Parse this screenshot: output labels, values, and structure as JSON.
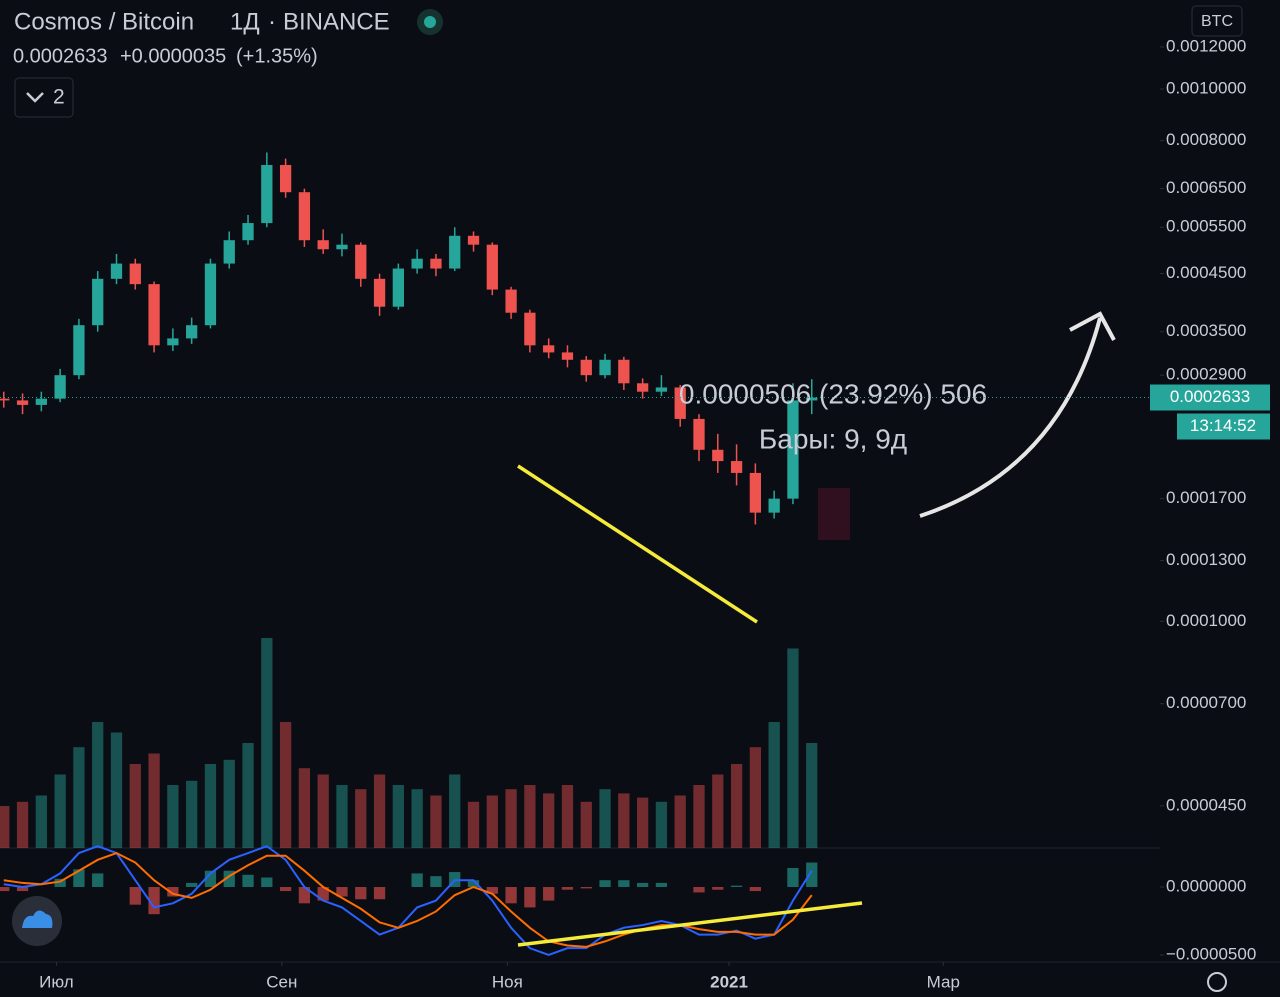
{
  "header": {
    "symbol": "Cosmos / Bitcoin",
    "interval": "1Д",
    "exchange": "BINANCE",
    "change": "+0.0000035",
    "change_pct": "(+1.35%)",
    "indicators_count": "2"
  },
  "currency": "BTC",
  "countdown": "13:14:52",
  "measure": {
    "text": "0.0000506 (23.92%) 506",
    "bars": "Бары: 9, 9д"
  },
  "chart_data": {
    "type": "candlestick",
    "log_scale": true,
    "x": [
      0,
      5,
      10,
      15,
      20,
      25,
      30,
      35,
      40,
      45,
      50,
      55,
      60,
      65,
      70,
      75,
      80,
      85,
      90,
      95,
      100,
      105,
      110,
      115,
      120,
      125,
      130,
      135,
      140,
      145,
      150,
      155,
      160,
      165,
      170,
      175,
      180,
      185,
      190,
      195,
      200,
      205,
      210,
      215
    ],
    "open": [
      0.000262,
      0.00026,
      0.000255,
      0.000262,
      0.00029,
      0.00036,
      0.00044,
      0.00047,
      0.00043,
      0.00033,
      0.00034,
      0.00036,
      0.00047,
      0.00052,
      0.00056,
      0.00072,
      0.00064,
      0.00052,
      0.0005,
      0.00051,
      0.00044,
      0.00039,
      0.00046,
      0.00048,
      0.00046,
      0.00053,
      0.00051,
      0.00042,
      0.00038,
      0.00033,
      0.00032,
      0.00031,
      0.00029,
      0.00031,
      0.00028,
      0.00027,
      0.000275,
      0.00024,
      0.00021,
      0.0002,
      0.00019,
      0.00016,
      0.00017,
      0.00026
    ],
    "high": [
      0.00027,
      0.000268,
      0.00027,
      0.000298,
      0.00037,
      0.000455,
      0.00049,
      0.00048,
      0.000435,
      0.000355,
      0.000372,
      0.00048,
      0.00054,
      0.00058,
      0.00076,
      0.00074,
      0.00065,
      0.000545,
      0.000535,
      0.000515,
      0.00045,
      0.00047,
      0.0005,
      0.00049,
      0.00055,
      0.00054,
      0.000515,
      0.000425,
      0.000385,
      0.00034,
      0.00033,
      0.000315,
      0.000318,
      0.000314,
      0.000286,
      0.00029,
      0.000278,
      0.000245,
      0.000225,
      0.000215,
      0.000198,
      0.000176,
      0.00028,
      0.000285
    ],
    "low": [
      0.000252,
      0.000245,
      0.000248,
      0.000258,
      0.000285,
      0.00035,
      0.00043,
      0.00042,
      0.00032,
      0.000322,
      0.000332,
      0.000355,
      0.00046,
      0.00051,
      0.00055,
      0.000625,
      0.000505,
      0.00049,
      0.000485,
      0.000425,
      0.000375,
      0.000385,
      0.00045,
      0.000445,
      0.000455,
      0.000495,
      0.00041,
      0.00037,
      0.00032,
      0.000312,
      0.0003,
      0.000282,
      0.000286,
      0.000272,
      0.000262,
      0.000265,
      0.000232,
      0.0002,
      0.00019,
      0.00018,
      0.000152,
      0.000156,
      0.000166,
      0.000245
    ],
    "close": [
      0.00026,
      0.000255,
      0.000262,
      0.00029,
      0.00036,
      0.00044,
      0.00047,
      0.00043,
      0.00033,
      0.00034,
      0.00036,
      0.00047,
      0.00052,
      0.00056,
      0.00072,
      0.00064,
      0.00052,
      0.0005,
      0.00051,
      0.00044,
      0.00039,
      0.00046,
      0.00048,
      0.00046,
      0.00053,
      0.00051,
      0.00042,
      0.00038,
      0.00033,
      0.00032,
      0.00031,
      0.00029,
      0.00031,
      0.00028,
      0.00027,
      0.000275,
      0.00024,
      0.00021,
      0.0002,
      0.00019,
      0.00016,
      0.00017,
      0.00026,
      0.0002633
    ],
    "volume": [
      20,
      22,
      25,
      35,
      48,
      60,
      55,
      40,
      45,
      30,
      32,
      40,
      42,
      50,
      100,
      60,
      38,
      35,
      30,
      28,
      35,
      30,
      28,
      25,
      35,
      22,
      25,
      28,
      30,
      26,
      30,
      22,
      28,
      26,
      24,
      22,
      25,
      30,
      35,
      40,
      48,
      60,
      95,
      50
    ],
    "macd": [
      2e-06,
      0,
      2e-06,
      1e-05,
      2.5e-05,
      3e-05,
      2.5e-05,
      5e-06,
      -1.5e-05,
      -1.2e-05,
      -5e-06,
      1e-05,
      2e-05,
      2.5e-05,
      3e-05,
      2e-05,
      0,
      -1e-05,
      -1.5e-05,
      -2.5e-05,
      -3.5e-05,
      -3e-05,
      -1.5e-05,
      -1e-05,
      5e-06,
      5e-06,
      -1e-05,
      -3e-05,
      -4.5e-05,
      -5e-05,
      -4.5e-05,
      -4.5e-05,
      -3.5e-05,
      -3e-05,
      -2.8e-05,
      -2.5e-05,
      -2.8e-05,
      -3.5e-05,
      -3.5e-05,
      -3.2e-05,
      -3.8e-05,
      -3.5e-05,
      -1e-05,
      1.2e-05
    ],
    "signal": [
      5e-06,
      3e-06,
      2e-06,
      4e-06,
      1.2e-05,
      2e-05,
      2.5e-05,
      1.8e-05,
      5e-06,
      -5e-06,
      -8e-06,
      -2e-06,
      8e-06,
      1.6e-05,
      2.3e-05,
      2.3e-05,
      1.2e-05,
      0,
      -8e-06,
      -1.6e-05,
      -2.6e-05,
      -3e-05,
      -2.5e-05,
      -1.8e-05,
      -6e-06,
      0,
      -5e-06,
      -1.8e-05,
      -3e-05,
      -4e-05,
      -4.3e-05,
      -4.4e-05,
      -4e-05,
      -3.5e-05,
      -3.1e-05,
      -2.8e-05,
      -2.8e-05,
      -3.1e-05,
      -3.3e-05,
      -3.3e-05,
      -3.5e-05,
      -3.5e-05,
      -2.4e-05,
      -6e-06
    ],
    "last_value": 0.0002633,
    "up_color": "#26a69a",
    "down_color": "#ef5350",
    "macd_color": "#2962ff",
    "signal_color": "#ff6d00",
    "xlim": [
      -1,
      309
    ],
    "xticks": [
      {
        "value": 14,
        "label": "Июл"
      },
      {
        "value": 74,
        "label": "Сен"
      },
      {
        "value": 134,
        "label": "Ноя"
      },
      {
        "value": 193,
        "label": "2021"
      },
      {
        "value": 250,
        "label": "Мар"
      }
    ],
    "ylim": [
      3.75e-05,
      0.00147
    ],
    "yticks": [
      {
        "value": 0.0012,
        "label": "0.0012000"
      },
      {
        "value": 0.001,
        "label": "0.0010000"
      },
      {
        "value": 0.0008,
        "label": "0.0008000"
      },
      {
        "value": 0.00065,
        "label": "0.0006500"
      },
      {
        "value": 0.00055,
        "label": "0.0005500"
      },
      {
        "value": 0.00045,
        "label": "0.0004500"
      },
      {
        "value": 0.00035,
        "label": "0.0003500"
      },
      {
        "value": 0.00029,
        "label": "0.0002900"
      },
      {
        "value": 0.00017,
        "label": "0.0001700"
      },
      {
        "value": 0.00013,
        "label": "0.0001300"
      },
      {
        "value": 0.0001,
        "label": "0.0001000"
      },
      {
        "value": 7e-05,
        "label": "0.0000700"
      },
      {
        "value": 4.5e-05,
        "label": "0.0000450"
      }
    ],
    "y2lim": [
      -5.37e-05,
      2.87e-05
    ],
    "y2ticks": [
      {
        "value": 0,
        "label": "0.0000000"
      },
      {
        "value": -5e-05,
        "label": "−0.0000500"
      }
    ]
  }
}
